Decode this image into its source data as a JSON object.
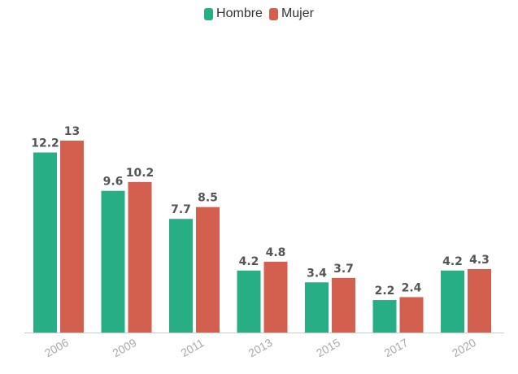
{
  "chart_data": {
    "type": "bar",
    "categories": [
      "2006",
      "2009",
      "2011",
      "2013",
      "2015",
      "2017",
      "2020"
    ],
    "series": [
      {
        "name": "Hombre",
        "values": [
          12.2,
          9.6,
          7.7,
          4.2,
          3.4,
          2.2,
          4.2
        ],
        "labels": [
          "12.2",
          "9.6",
          "7.7",
          "4.2",
          "3.4",
          "2.2",
          "4.2"
        ],
        "color": "#27ae84"
      },
      {
        "name": "Mujer",
        "values": [
          13,
          10.2,
          8.5,
          4.8,
          3.7,
          2.4,
          4.3
        ],
        "labels": [
          "13",
          "10.2",
          "8.5",
          "4.8",
          "3.7",
          "2.4",
          "4.3"
        ],
        "color": "#d35f4f"
      }
    ],
    "title": "",
    "xlabel": "",
    "ylabel": "",
    "ylim": [
      0,
      13
    ],
    "grid": false,
    "legend_position": "top-center"
  },
  "colors": {
    "label_text": "#555555",
    "tick_text": "#aaaaaa",
    "axis_line": "#cccccc"
  }
}
